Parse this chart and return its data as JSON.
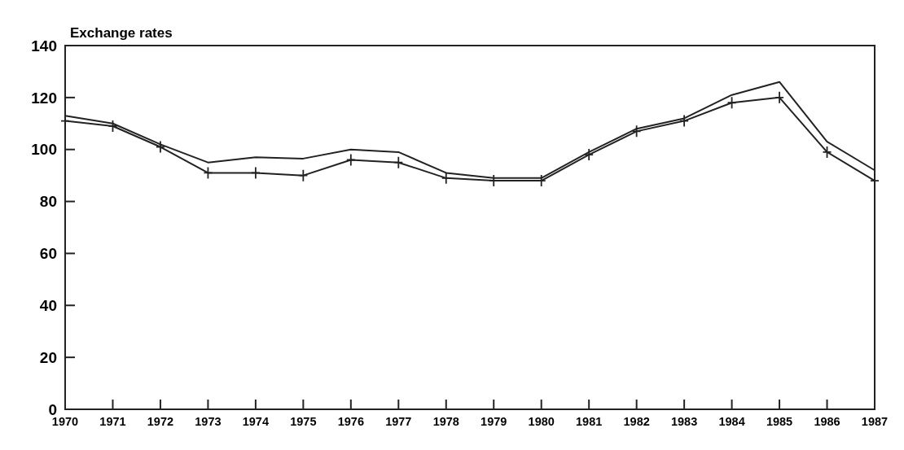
{
  "chart_data": {
    "type": "line",
    "title": "Exchange rates",
    "categories": [
      "1970",
      "1971",
      "1972",
      "1973",
      "1974",
      "1975",
      "1976",
      "1977",
      "1978",
      "1979",
      "1980",
      "1981",
      "1982",
      "1983",
      "1984",
      "1985",
      "1986",
      "1987"
    ],
    "series": [
      {
        "color": "#222222",
        "marker": "none",
        "values": [
          113,
          110,
          102,
          95,
          97,
          96.5,
          100,
          99,
          91,
          89,
          89,
          99,
          108,
          112,
          121,
          126,
          103,
          92
        ]
      },
      {
        "color": "#222222",
        "marker": "cross",
        "values": [
          111,
          109,
          101,
          91,
          91,
          90,
          96,
          95,
          89,
          88,
          88,
          98,
          107,
          111,
          118,
          120,
          99,
          88
        ]
      }
    ],
    "ylim": [
      0,
      140
    ],
    "yticks": [
      0,
      20,
      40,
      60,
      80,
      100,
      120,
      140
    ],
    "grid": false,
    "line_style": "solid"
  }
}
